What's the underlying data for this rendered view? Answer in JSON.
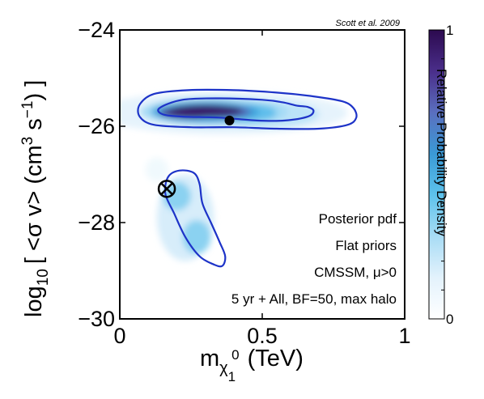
{
  "chart_data": {
    "type": "heatmap",
    "title": "",
    "credit": "Scott et al. 2009",
    "xlabel": {
      "main": "m",
      "sub": "χ",
      "sub_sub": "1",
      "sup": "0",
      "units": "(TeV)"
    },
    "ylabel": {
      "prefix": "log",
      "sub": "10",
      "body1": "[ <σ v> (cm",
      "sup1": "3",
      "body2": " s",
      "sup2": "−1",
      "body3": ") ]"
    },
    "xlim": [
      0,
      1
    ],
    "ylim": [
      -30,
      -24
    ],
    "xticks": [
      {
        "value": 0,
        "label": "0"
      },
      {
        "value": 0.5,
        "label": "0.5"
      },
      {
        "value": 1,
        "label": "1"
      }
    ],
    "yticks": [
      {
        "value": -24,
        "label": "−24"
      },
      {
        "value": -26,
        "label": "−26"
      },
      {
        "value": -28,
        "label": "−28"
      },
      {
        "value": -30,
        "label": "−30"
      }
    ],
    "colorbar": {
      "label": "Relative Probability Density",
      "min_label": "0",
      "max_label": "1",
      "colors": [
        "#ffffff",
        "#e3f2fc",
        "#a8dcf5",
        "#5dc2ec",
        "#3a9ad6",
        "#5a6fbf",
        "#4a2e8a",
        "#2c0a4f"
      ]
    },
    "annotations": [
      "Posterior pdf",
      "Flat priors",
      "CMSSM, μ>0",
      "5 yr + All, BF=50, max halo"
    ],
    "best_fit_point": {
      "x": 0.385,
      "y": -25.88
    },
    "posterior_mean": {
      "x": 0.165,
      "y": -27.3
    },
    "density_blobs": [
      {
        "cx": 0.3,
        "cy": -25.68,
        "rx": 0.13,
        "ry": 0.13,
        "level": 0.95
      },
      {
        "cx": 0.24,
        "cy": -25.72,
        "rx": 0.1,
        "ry": 0.12,
        "level": 0.85
      },
      {
        "cx": 0.36,
        "cy": -25.7,
        "rx": 0.1,
        "ry": 0.12,
        "level": 0.75
      },
      {
        "cx": 0.3,
        "cy": -25.7,
        "rx": 0.19,
        "ry": 0.22,
        "level": 0.55
      },
      {
        "cx": 0.45,
        "cy": -25.72,
        "rx": 0.1,
        "ry": 0.18,
        "level": 0.45
      },
      {
        "cx": 0.33,
        "cy": -25.7,
        "rx": 0.26,
        "ry": 0.3,
        "level": 0.3
      },
      {
        "cx": 0.5,
        "cy": -25.75,
        "rx": 0.2,
        "ry": 0.28,
        "level": 0.25
      },
      {
        "cx": 0.36,
        "cy": -25.72,
        "rx": 0.44,
        "ry": 0.45,
        "level": 0.14
      },
      {
        "cx": 0.2,
        "cy": -27.45,
        "rx": 0.05,
        "ry": 0.3,
        "level": 0.35
      },
      {
        "cx": 0.27,
        "cy": -28.3,
        "rx": 0.05,
        "ry": 0.35,
        "level": 0.35
      },
      {
        "cx": 0.23,
        "cy": -27.9,
        "rx": 0.1,
        "ry": 0.9,
        "level": 0.18
      },
      {
        "cx": 0.13,
        "cy": -26.9,
        "rx": 0.04,
        "ry": 0.25,
        "level": 0.08
      }
    ],
    "contours": [
      {
        "name": "",
        "points": [
          [
            0.07,
            -25.55
          ],
          [
            0.12,
            -25.33
          ],
          [
            0.24,
            -25.25
          ],
          [
            0.4,
            -25.25
          ],
          [
            0.55,
            -25.3
          ],
          [
            0.68,
            -25.38
          ],
          [
            0.78,
            -25.48
          ],
          [
            0.82,
            -25.62
          ],
          [
            0.83,
            -25.82
          ],
          [
            0.8,
            -25.97
          ],
          [
            0.7,
            -26.05
          ],
          [
            0.55,
            -26.05
          ],
          [
            0.4,
            -26.02
          ],
          [
            0.25,
            -26.02
          ],
          [
            0.12,
            -25.97
          ],
          [
            0.07,
            -25.8
          ]
        ]
      },
      {
        "name": "",
        "points": [
          [
            0.14,
            -25.62
          ],
          [
            0.22,
            -25.45
          ],
          [
            0.35,
            -25.42
          ],
          [
            0.5,
            -25.45
          ],
          [
            0.57,
            -25.5
          ],
          [
            0.62,
            -25.57
          ],
          [
            0.66,
            -25.6
          ],
          [
            0.68,
            -25.68
          ],
          [
            0.66,
            -25.8
          ],
          [
            0.58,
            -25.88
          ],
          [
            0.48,
            -25.88
          ],
          [
            0.35,
            -25.82
          ],
          [
            0.22,
            -25.8
          ],
          [
            0.15,
            -25.75
          ]
        ]
      },
      {
        "name": "",
        "points": [
          [
            0.17,
            -27.05
          ],
          [
            0.21,
            -26.92
          ],
          [
            0.26,
            -26.97
          ],
          [
            0.28,
            -27.2
          ],
          [
            0.29,
            -27.6
          ],
          [
            0.32,
            -28.0
          ],
          [
            0.35,
            -28.4
          ],
          [
            0.37,
            -28.7
          ],
          [
            0.36,
            -28.9
          ],
          [
            0.33,
            -28.87
          ],
          [
            0.28,
            -28.7
          ],
          [
            0.23,
            -28.3
          ],
          [
            0.19,
            -27.8
          ],
          [
            0.16,
            -27.4
          ]
        ]
      }
    ]
  }
}
